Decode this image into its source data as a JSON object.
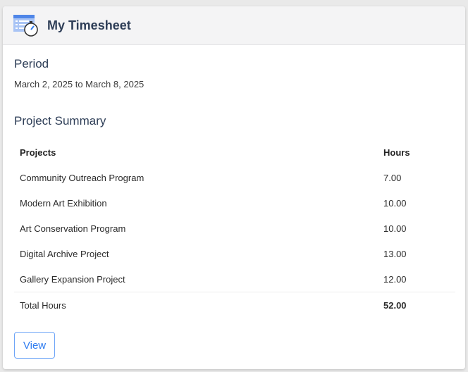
{
  "header": {
    "title": "My Timesheet",
    "icon": "timesheet-stopwatch-icon"
  },
  "period": {
    "heading": "Period",
    "text": "March 2, 2025 to March 8, 2025"
  },
  "summary": {
    "heading": "Project Summary",
    "columns": [
      "Projects",
      "Hours"
    ],
    "rows": [
      {
        "project": "Community Outreach Program",
        "hours": "7.00"
      },
      {
        "project": "Modern Art Exhibition",
        "hours": "10.00"
      },
      {
        "project": "Art Conservation Program",
        "hours": "10.00"
      },
      {
        "project": "Digital Archive Project",
        "hours": "13.00"
      },
      {
        "project": "Gallery Expansion Project",
        "hours": "12.00"
      }
    ],
    "total_label": "Total Hours",
    "total_hours": "52.00"
  },
  "actions": {
    "view_label": "View"
  },
  "colors": {
    "accent": "#2f7cf0",
    "heading": "#2e3e57"
  }
}
